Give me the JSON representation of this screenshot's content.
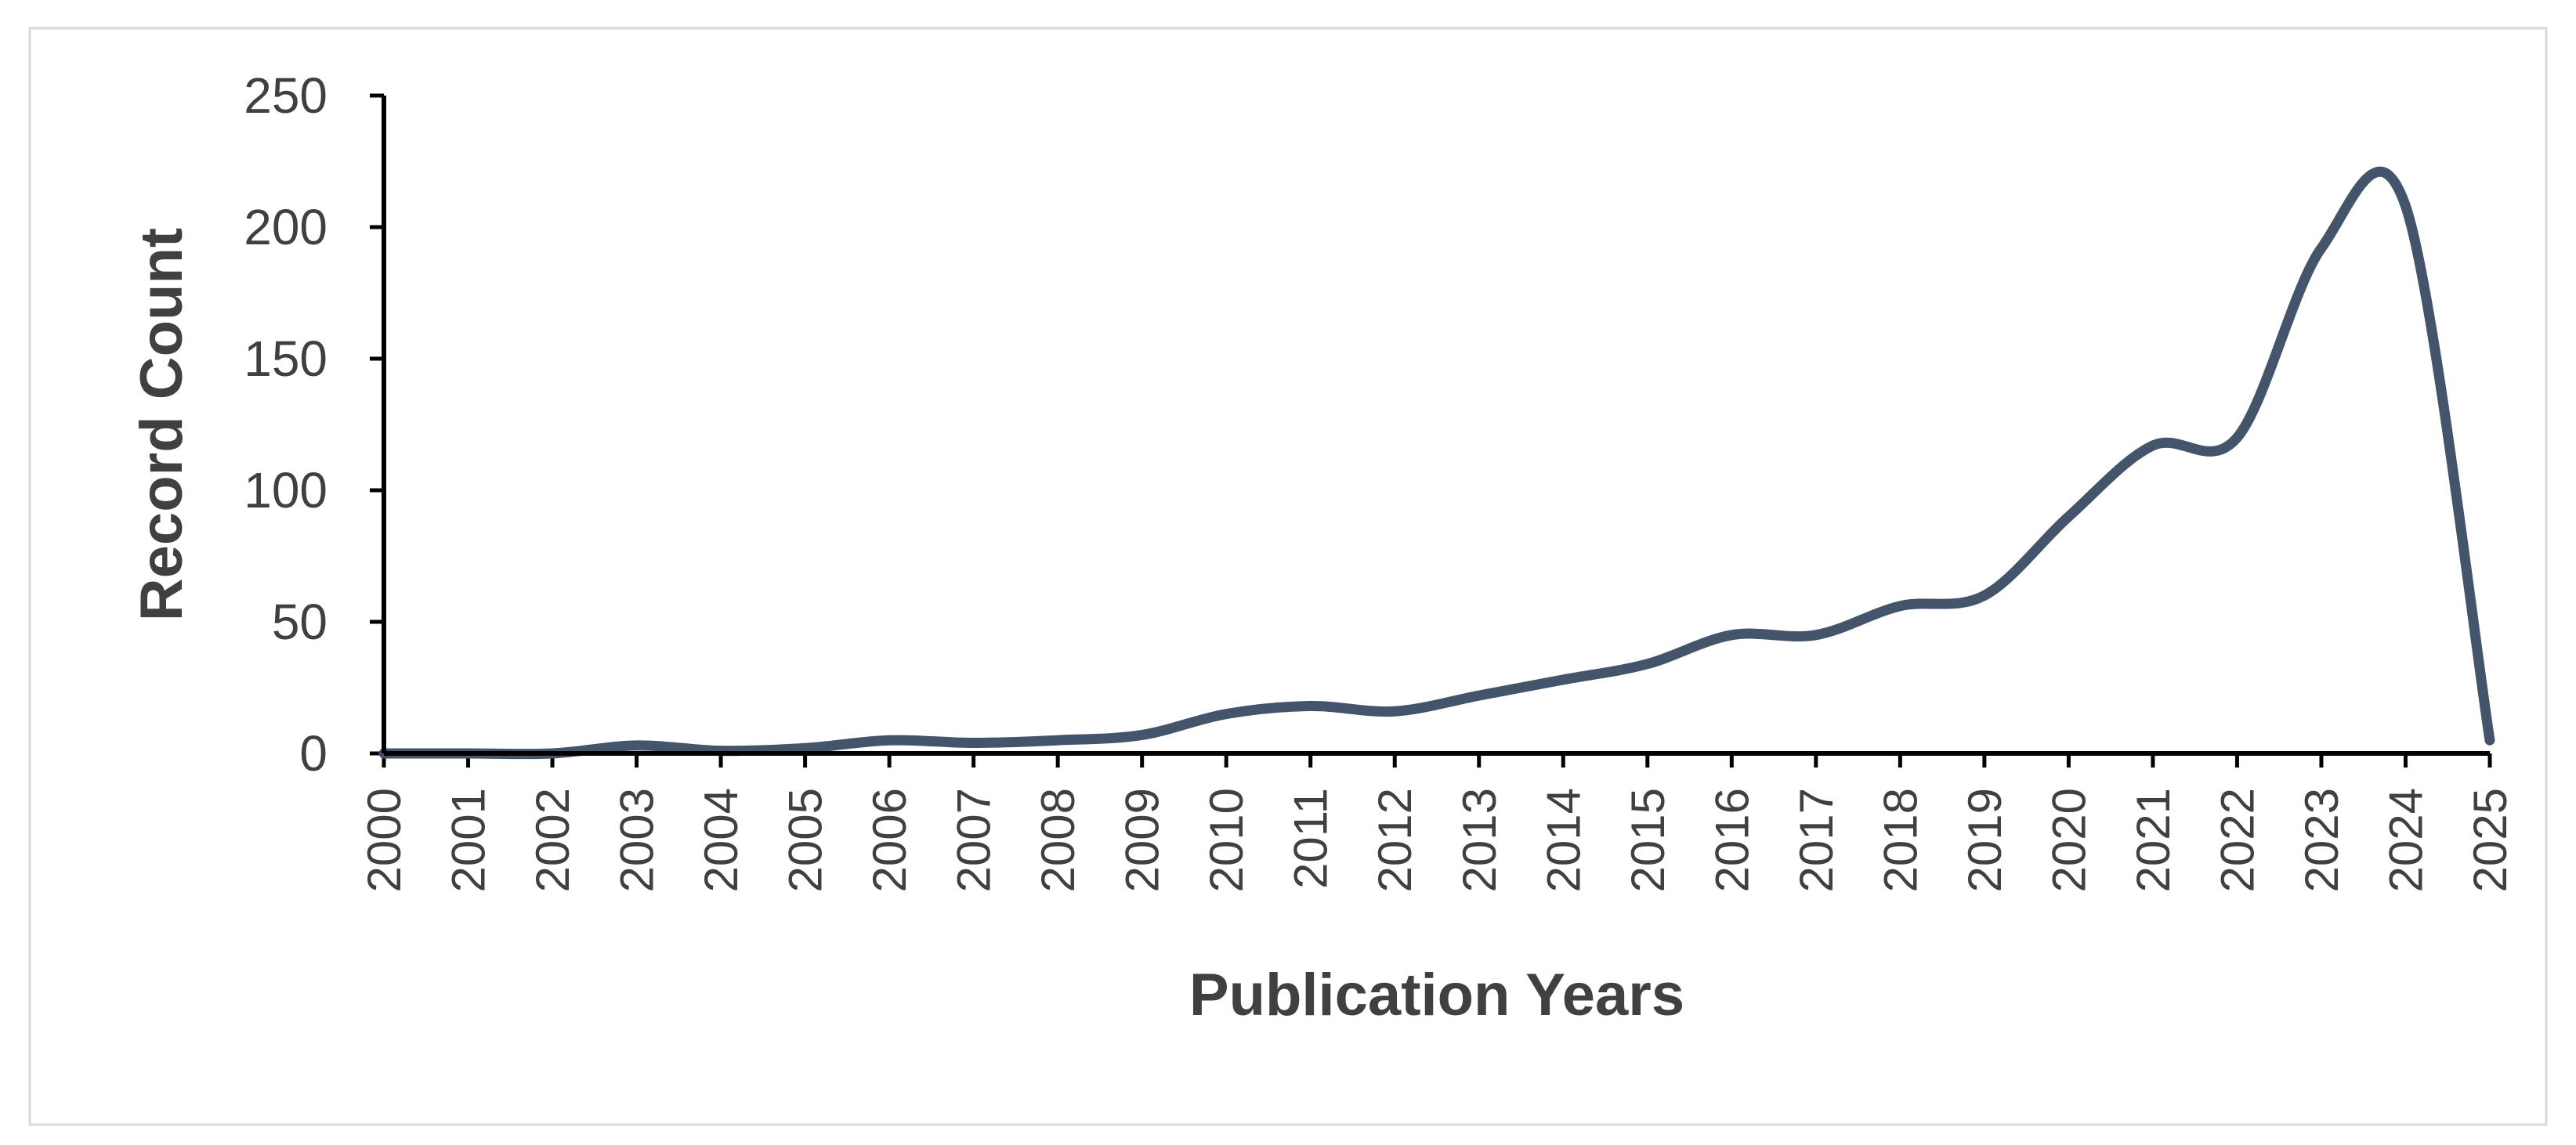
{
  "chart_data": {
    "type": "line",
    "title": "",
    "xlabel": "Publication Years",
    "ylabel": "Record Count",
    "x": [
      "2000",
      "2001",
      "2002",
      "2003",
      "2004",
      "2005",
      "2006",
      "2007",
      "2008",
      "2009",
      "2010",
      "2011",
      "2012",
      "2013",
      "2014",
      "2015",
      "2016",
      "2017",
      "2018",
      "2019",
      "2020",
      "2021",
      "2022",
      "2023",
      "2024",
      "2025"
    ],
    "series": [
      {
        "values": [
          0,
          0,
          0,
          3,
          1,
          2,
          5,
          4,
          5,
          7,
          15,
          18,
          16,
          22,
          28,
          34,
          45,
          45,
          56,
          60,
          90,
          117,
          120,
          192,
          208,
          5
        ],
        "color": "#44546a"
      }
    ],
    "ylim": [
      0,
      250
    ],
    "yticks": [
      0,
      50,
      100,
      150,
      200,
      250
    ],
    "smooth": true,
    "grid": false,
    "legend": "none"
  }
}
